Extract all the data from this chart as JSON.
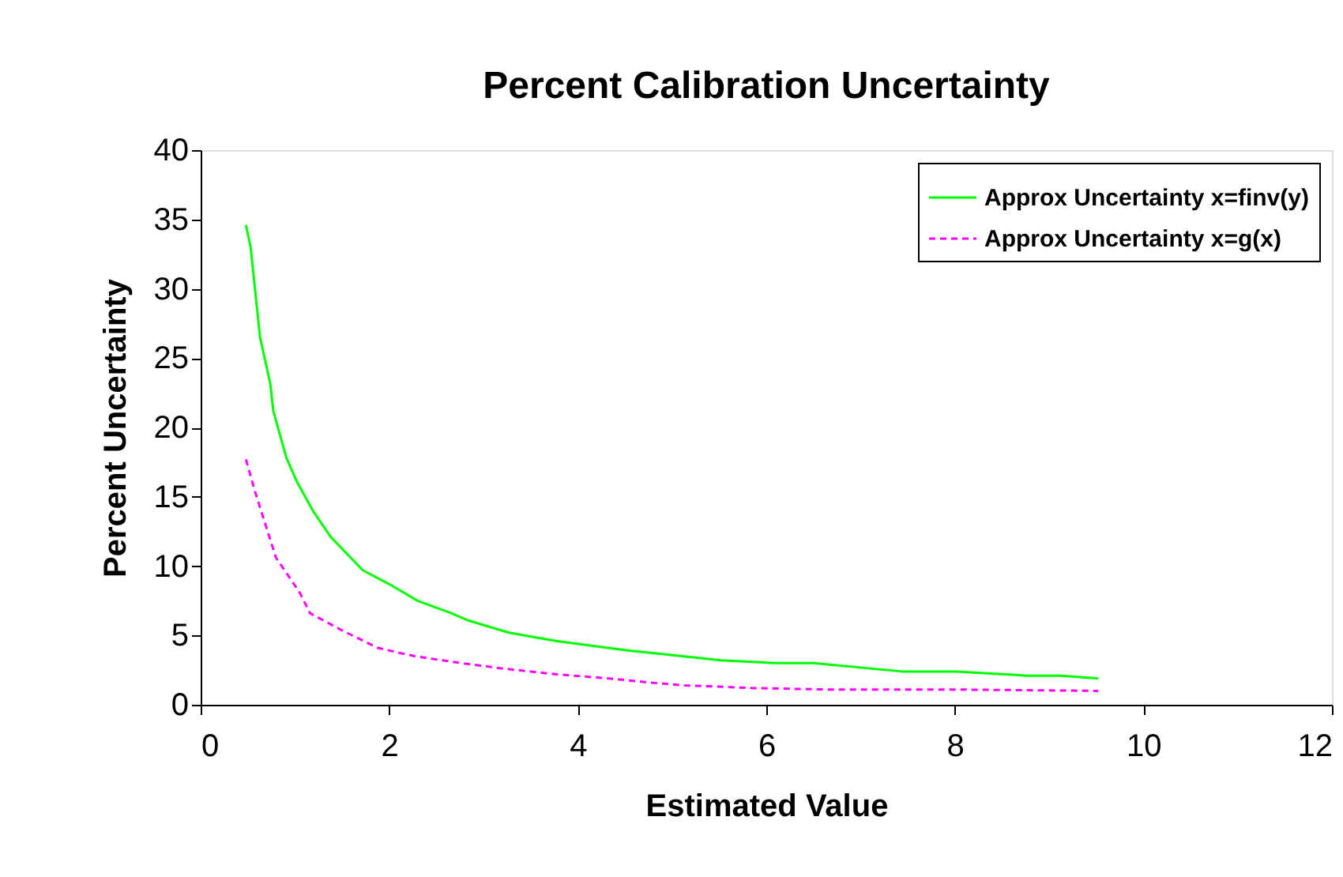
{
  "chart_data": {
    "type": "line",
    "title": "Percent Calibration Uncertainty",
    "xlabel": "Estimated Value",
    "ylabel": "Percent Uncertainty",
    "xlim": [
      0,
      12
    ],
    "xticks": [
      0,
      2,
      4,
      6,
      8,
      10,
      12
    ],
    "ylim": [
      0,
      40
    ],
    "yticks": [
      0,
      5,
      10,
      15,
      20,
      25,
      30,
      35,
      40
    ],
    "grid": false,
    "legend": "top right",
    "marker": "none",
    "series": [
      {
        "name": "Approx Uncertainty x=finv(y)",
        "color": "#00ff00",
        "line_style": "solid",
        "x": [
          0.48,
          0.53,
          0.63,
          0.74,
          0.77,
          0.91,
          1.02,
          1.19,
          1.38,
          1.72,
          2.0,
          2.3,
          2.5,
          2.66,
          2.83,
          3.27,
          3.77,
          4.55,
          4.97,
          5.52,
          6.1,
          6.5,
          7.44,
          8.02,
          8.77,
          9.13,
          9.52
        ],
        "values": [
          34.6,
          33.0,
          26.5,
          23.1,
          21.2,
          17.8,
          16.1,
          14.0,
          12.1,
          9.7,
          8.7,
          7.5,
          7.0,
          6.6,
          6.1,
          5.2,
          4.6,
          3.9,
          3.6,
          3.2,
          3.0,
          3.0,
          2.4,
          2.4,
          2.1,
          2.1,
          1.9
        ]
      },
      {
        "name": "Approx Uncertainty x=g(x)",
        "color": "#ff00ff",
        "line_style": "dashed",
        "x": [
          0.48,
          0.58,
          0.72,
          0.8,
          1.05,
          1.16,
          1.49,
          1.88,
          2.27,
          2.77,
          3.22,
          3.77,
          4.33,
          4.77,
          5.13,
          5.88,
          6.66,
          8.02,
          9.52
        ],
        "values": [
          17.7,
          15.3,
          12.3,
          10.6,
          8.1,
          6.6,
          5.4,
          4.1,
          3.5,
          3.0,
          2.6,
          2.2,
          1.9,
          1.6,
          1.4,
          1.2,
          1.1,
          1.1,
          1.0
        ]
      }
    ]
  }
}
